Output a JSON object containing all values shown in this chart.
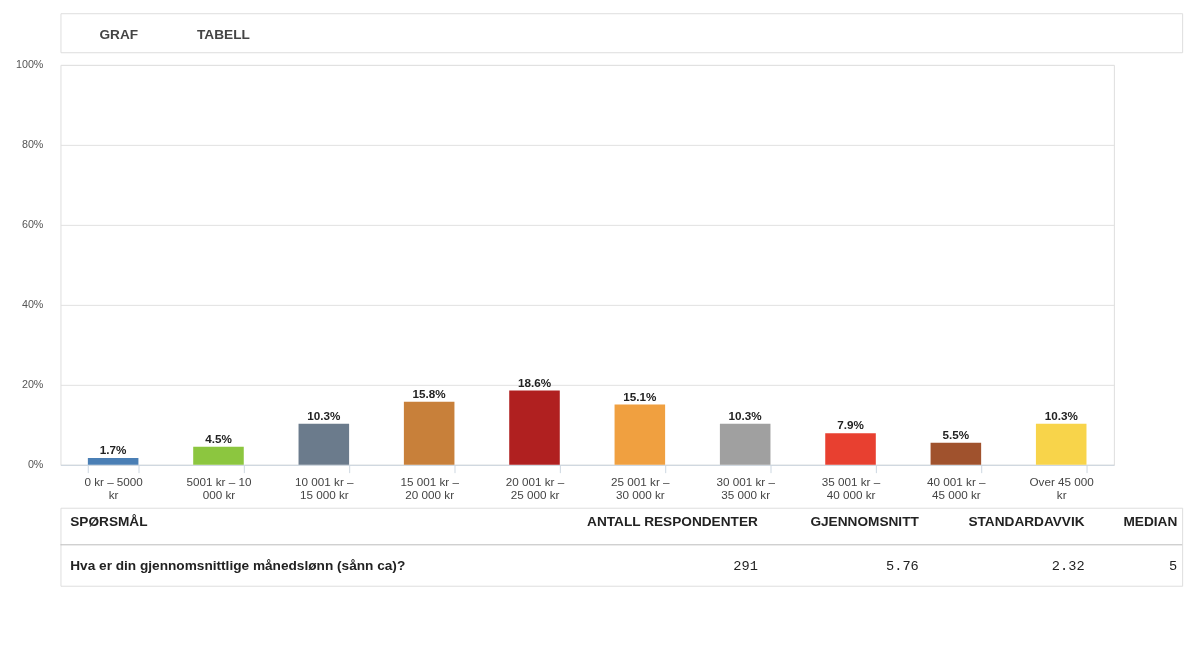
{
  "chart_data": {
    "type": "bar",
    "categories": [
      "0 kr – 5000 kr",
      "5001 kr – 10 000 kr",
      "10 001 kr – 15 000 kr",
      "15 001 kr – 20 000 kr",
      "20 001 kr – 25 000 kr",
      "25 001 kr – 30 000 kr",
      "30 001 kr – 35 000 kr",
      "35 001 kr – 40 000 kr",
      "40 001 kr – 45 000 kr",
      "Over 45 000 kr"
    ],
    "values": [
      1.7,
      4.5,
      10.3,
      15.8,
      18.6,
      15.1,
      10.3,
      7.9,
      5.5,
      10.3
    ],
    "value_labels": [
      "1.7%",
      "4.5%",
      "10.3%",
      "15.8%",
      "18.6%",
      "15.1%",
      "10.3%",
      "7.9%",
      "5.5%",
      "10.3%"
    ],
    "colors": [
      "#4a7fb5",
      "#8cc63f",
      "#6b7b8c",
      "#c8803a",
      "#b02020",
      "#f0a040",
      "#a0a0a0",
      "#e84030",
      "#a0522d",
      "#f8d44a"
    ],
    "ylim": [
      0,
      100
    ],
    "yticks": [
      {
        "value": 0,
        "label": "0%"
      },
      {
        "value": 20,
        "label": "20%"
      },
      {
        "value": 40,
        "label": "40%"
      },
      {
        "value": 60,
        "label": "60%"
      },
      {
        "value": 80,
        "label": "80%"
      },
      {
        "value": 100,
        "label": "100%"
      }
    ],
    "grid": "y",
    "annotations": [
      "GRAF",
      "TABELL",
      "SPØRSMÅL",
      "ANTALL RESPONDENTER",
      "GJENNOMSNITT",
      "STANDARDAVVIK",
      "MEDIAN",
      "Hva er din gjennomsnittlige månedslønn (sånn ca)?",
      "291",
      "5.76",
      "2.32",
      "5"
    ]
  }
}
